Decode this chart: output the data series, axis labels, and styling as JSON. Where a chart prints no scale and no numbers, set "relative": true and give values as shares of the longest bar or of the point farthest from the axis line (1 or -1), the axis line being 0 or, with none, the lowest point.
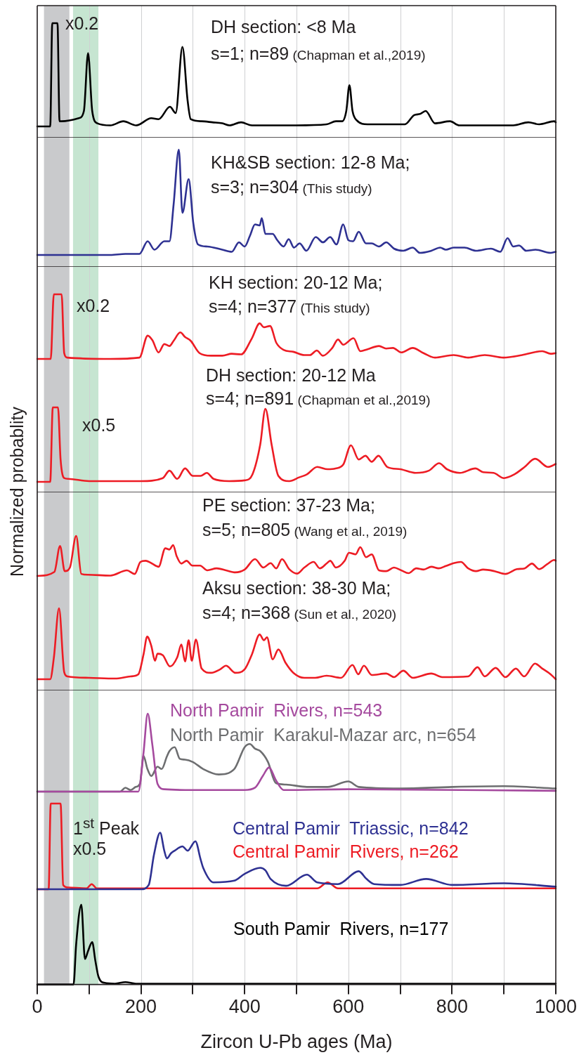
{
  "chart_data": [
    {
      "type": "line",
      "title": "DH section: <8 Ma",
      "subtitle": "s=1; n=89",
      "annotations": [
        "x0.2",
        "(Chapman et al.,2019)"
      ],
      "relative": true,
      "color": "#000000",
      "tick_labels": false,
      "grid": "x",
      "xlim": [
        0,
        1000
      ],
      "xticks": [
        0,
        {
          "value": 100,
          "label": null
        },
        200,
        {
          "value": 300,
          "label": null
        },
        400,
        {
          "value": 500,
          "label": null
        },
        600,
        {
          "value": 700,
          "label": null
        },
        800,
        {
          "value": 900,
          "label": null
        },
        1000
      ],
      "bands": [
        {
          "axis": "x",
          "from": 13,
          "to": 62,
          "color": "#c9cacc"
        },
        {
          "axis": "x",
          "from": 69,
          "to": 118,
          "color": "#c6e5d1"
        }
      ],
      "x": [
        0,
        25,
        29,
        39,
        43,
        47,
        80,
        90,
        98,
        106,
        116,
        141,
        166,
        191,
        220,
        234,
        256,
        267,
        280,
        290,
        296,
        317,
        338,
        357,
        371,
        393,
        414,
        500,
        558,
        576,
        588,
        596,
        602,
        608,
        616,
        637,
        709,
        727,
        738,
        749,
        767,
        796,
        814,
        918,
        947,
        968,
        997,
        1000
      ],
      "values": [
        0,
        0,
        1,
        1,
        0.05,
        0.05,
        0.08,
        0.15,
        0.71,
        0.15,
        0.03,
        0.01,
        0.05,
        0.01,
        0.08,
        0.07,
        0.19,
        0.13,
        0.77,
        0.25,
        0.07,
        0.05,
        0.04,
        0.03,
        0.01,
        0.04,
        0.01,
        0.01,
        0.02,
        0.05,
        0.05,
        0.15,
        0.4,
        0.15,
        0.06,
        0.02,
        0.02,
        0.11,
        0.12,
        0.15,
        0.03,
        0.05,
        0.01,
        0.01,
        0.04,
        0.02,
        0.05,
        0.04
      ]
    },
    {
      "type": "line",
      "title": "KH&SB section: 12-8 Ma;",
      "subtitle": "s=3; n=304",
      "annotations": [
        "(This study)"
      ],
      "relative": true,
      "color": "#2e3192",
      "tick_labels": false,
      "grid": "x",
      "xlim": [
        0,
        1000
      ],
      "xticks": [
        0,
        {
          "value": 100,
          "label": null
        },
        200,
        {
          "value": 300,
          "label": null
        },
        400,
        {
          "value": 500,
          "label": null
        },
        600,
        {
          "value": 700,
          "label": null
        },
        800,
        {
          "value": 900,
          "label": null
        },
        1000
      ],
      "bands": [
        {
          "axis": "x",
          "from": 13,
          "to": 62,
          "color": "#c9cacc"
        },
        {
          "axis": "x",
          "from": 69,
          "to": 118,
          "color": "#c6e5d1"
        }
      ],
      "x": [
        0,
        141,
        170,
        197,
        213,
        226,
        245,
        255,
        263,
        273,
        280,
        292,
        301,
        310,
        328,
        357,
        375,
        389,
        400,
        410,
        420,
        429,
        433,
        440,
        454,
        463,
        475,
        485,
        495,
        506,
        519,
        537,
        551,
        565,
        577,
        590,
        600,
        609,
        620,
        634,
        645,
        659,
        673,
        688,
        706,
        724,
        738,
        760,
        777,
        788,
        803,
        824,
        846,
        875,
        893,
        907,
        918,
        929,
        943,
        961,
        990,
        1000
      ],
      "values": [
        0,
        0,
        0.01,
        0.01,
        0.13,
        0.05,
        0.13,
        0.13,
        0.48,
        1,
        0.4,
        0.72,
        0.3,
        0.1,
        0.08,
        0.05,
        0.03,
        0.12,
        0.08,
        0.18,
        0.29,
        0.28,
        0.35,
        0.2,
        0.2,
        0.14,
        0.08,
        0.15,
        0.07,
        0.11,
        0.04,
        0.17,
        0.12,
        0.17,
        0.1,
        0.29,
        0.14,
        0.13,
        0.22,
        0.11,
        0.11,
        0.08,
        0.12,
        0.06,
        0.04,
        0.07,
        0.02,
        0.04,
        0.07,
        0.05,
        0.07,
        0.07,
        0.04,
        0.06,
        0.03,
        0.16,
        0.08,
        0.09,
        0.04,
        0.05,
        0.02,
        0.03
      ]
    },
    {
      "type": "line",
      "title": "KH section: 20-12 Ma;",
      "subtitle": "s=4; n=377",
      "annotations": [
        "x0.2",
        "(This study)"
      ],
      "relative": true,
      "color": "#ed1c24",
      "tick_labels": false,
      "grid": "x",
      "xlim": [
        0,
        1000
      ],
      "xticks": [
        0,
        {
          "value": 100,
          "label": null
        },
        200,
        {
          "value": 300,
          "label": null
        },
        400,
        {
          "value": 500,
          "label": null
        },
        600,
        {
          "value": 700,
          "label": null
        },
        800,
        {
          "value": 900,
          "label": null
        },
        1000
      ],
      "bands": [
        {
          "axis": "x",
          "from": 13,
          "to": 62,
          "color": "#c9cacc"
        },
        {
          "axis": "x",
          "from": 69,
          "to": 118,
          "color": "#c6e5d1"
        }
      ],
      "x": [
        0,
        26,
        32,
        47,
        52,
        58,
        141,
        197,
        213,
        222,
        234,
        245,
        255,
        263,
        276,
        285,
        296,
        313,
        335,
        357,
        375,
        393,
        414,
        429,
        437,
        449,
        461,
        475,
        494,
        515,
        526,
        539,
        551,
        569,
        580,
        590,
        610,
        623,
        637,
        659,
        673,
        686,
        702,
        724,
        745,
        767,
        803,
        831,
        863,
        899,
        935,
        974,
        990,
        1000
      ],
      "values": [
        0,
        0,
        1,
        1,
        0.09,
        0.02,
        0,
        0.02,
        0.36,
        0.29,
        0.1,
        0.23,
        0.2,
        0.28,
        0.41,
        0.34,
        0.28,
        0.09,
        0.05,
        0.05,
        0.08,
        0.07,
        0.32,
        0.55,
        0.49,
        0.51,
        0.25,
        0.14,
        0.11,
        0.06,
        0.06,
        0.13,
        0.05,
        0.17,
        0.3,
        0.22,
        0.32,
        0.12,
        0.15,
        0.2,
        0.16,
        0.17,
        0.1,
        0.17,
        0.09,
        0.02,
        0.06,
        0.02,
        0.06,
        0.02,
        0.06,
        0.12,
        0.08,
        0.09
      ]
    },
    {
      "type": "line",
      "title": "DH section: 20-12 Ma",
      "subtitle": "s=4; n=891",
      "annotations": [
        "x0.5",
        "(Chapman et al.,2019)"
      ],
      "ylabel": "Normalized probablity",
      "relative": true,
      "color": "#ed1c24",
      "tick_labels": false,
      "grid": "x",
      "xlim": [
        0,
        1000
      ],
      "xticks": [
        0,
        {
          "value": 100,
          "label": null
        },
        200,
        {
          "value": 300,
          "label": null
        },
        400,
        {
          "value": 500,
          "label": null
        },
        600,
        {
          "value": 700,
          "label": null
        },
        800,
        {
          "value": 900,
          "label": null
        },
        1000
      ],
      "bands": [
        {
          "axis": "x",
          "from": 13,
          "to": 62,
          "color": "#c9cacc"
        },
        {
          "axis": "x",
          "from": 69,
          "to": 118,
          "color": "#c6e5d1"
        }
      ],
      "x": [
        0,
        25,
        30,
        40,
        45,
        52,
        60,
        100,
        200,
        242,
        255,
        270,
        285,
        300,
        315,
        327,
        340,
        370,
        400,
        415,
        430,
        440,
        452,
        465,
        486,
        505,
        520,
        540,
        560,
        575,
        590,
        605,
        620,
        633,
        645,
        658,
        675,
        700,
        730,
        755,
        775,
        790,
        815,
        845,
        860,
        880,
        900,
        920,
        940,
        960,
        985,
        1000
      ],
      "values": [
        0,
        0,
        1,
        1,
        0.3,
        0.05,
        0.04,
        0.01,
        0.01,
        0.05,
        0.15,
        0.04,
        0.18,
        0.08,
        0.08,
        0.12,
        0.04,
        0.01,
        0.02,
        0.1,
        0.5,
        0.98,
        0.5,
        0.08,
        0.01,
        0.06,
        0.1,
        0.2,
        0.17,
        0.18,
        0.23,
        0.49,
        0.3,
        0.35,
        0.27,
        0.35,
        0.2,
        0.17,
        0.12,
        0.15,
        0.25,
        0.17,
        0.12,
        0.18,
        0.13,
        0.12,
        0.05,
        0.1,
        0.2,
        0.31,
        0.2,
        0.24
      ]
    },
    {
      "type": "line",
      "title": "PE section: 37-23 Ma;",
      "subtitle": "s=5; n=805",
      "annotations": [
        "(Wang et al., 2019)"
      ],
      "relative": true,
      "color": "#ed1c24",
      "tick_labels": false,
      "grid": "x",
      "xlim": [
        0,
        1000
      ],
      "xticks": [
        0,
        {
          "value": 100,
          "label": null
        },
        200,
        {
          "value": 300,
          "label": null
        },
        400,
        {
          "value": 500,
          "label": null
        },
        600,
        {
          "value": 700,
          "label": null
        },
        800,
        {
          "value": 900,
          "label": null
        },
        1000
      ],
      "bands": [
        {
          "axis": "x",
          "from": 13,
          "to": 62,
          "color": "#c9cacc"
        },
        {
          "axis": "x",
          "from": 69,
          "to": 118,
          "color": "#c6e5d1"
        }
      ],
      "x": [
        0,
        33,
        44,
        53,
        63,
        75,
        85,
        98,
        141,
        173,
        188,
        199,
        209,
        220,
        234,
        247,
        255,
        262,
        269,
        278,
        288,
        299,
        314,
        328,
        346,
        364,
        382,
        400,
        420,
        436,
        450,
        461,
        472,
        486,
        501,
        515,
        533,
        545,
        558,
        565,
        576,
        593,
        601,
        614,
        623,
        634,
        645,
        659,
        673,
        688,
        702,
        716,
        731,
        745,
        760,
        774,
        788,
        803,
        817,
        831,
        846,
        860,
        882,
        903,
        925,
        940,
        954,
        968,
        983,
        997,
        1000
      ],
      "values": [
        0,
        0.1,
        0.75,
        0.12,
        0.21,
        1,
        0.05,
        0.03,
        0.01,
        0.14,
        0.05,
        0.35,
        0.38,
        0.32,
        0.23,
        0.69,
        0.66,
        0.77,
        0.49,
        0.31,
        0.38,
        0.26,
        0.26,
        0.14,
        0.19,
        0.14,
        0.09,
        0.16,
        0.42,
        0.21,
        0.32,
        0.19,
        0.42,
        0.17,
        0.06,
        0.21,
        0.35,
        0.19,
        0.31,
        0.38,
        0.21,
        0.38,
        0.58,
        0.54,
        0.72,
        0.47,
        0.54,
        0.14,
        0.12,
        0.21,
        0.14,
        0.07,
        0.19,
        0.16,
        0.23,
        0.19,
        0.25,
        0.32,
        0.35,
        0.19,
        0.12,
        0.16,
        0.12,
        0.05,
        0.17,
        0.19,
        0.31,
        0.17,
        0.29,
        0.4,
        0.38
      ]
    },
    {
      "type": "line",
      "title": "Aksu section: 38-30 Ma;",
      "subtitle": "s=4; n=368",
      "annotations": [
        "(Sun et al., 2020)"
      ],
      "relative": true,
      "color": "#ed1c24",
      "tick_labels": false,
      "grid": "x",
      "xlim": [
        0,
        1000
      ],
      "xticks": [
        0,
        {
          "value": 100,
          "label": null
        },
        200,
        {
          "value": 300,
          "label": null
        },
        400,
        {
          "value": 500,
          "label": null
        },
        600,
        {
          "value": 700,
          "label": null
        },
        800,
        {
          "value": 900,
          "label": null
        },
        1000
      ],
      "bands": [
        {
          "axis": "x",
          "from": 13,
          "to": 62,
          "color": "#c9cacc"
        },
        {
          "axis": "x",
          "from": 69,
          "to": 118,
          "color": "#c6e5d1"
        }
      ],
      "x": [
        0,
        25,
        32,
        42,
        52,
        58,
        100,
        150,
        180,
        195,
        205,
        212,
        220,
        227,
        232,
        242,
        256,
        270,
        278,
        285,
        292,
        298,
        306,
        317,
        335,
        353,
        364,
        382,
        400,
        414,
        429,
        437,
        443,
        454,
        465,
        479,
        494,
        515,
        536,
        558,
        586,
        608,
        619,
        630,
        645,
        673,
        688,
        706,
        724,
        760,
        781,
        831,
        849,
        863,
        884,
        903,
        923,
        939,
        960,
        974,
        990,
        1000
      ],
      "values": [
        0,
        0,
        0.3,
        1,
        0.1,
        0.04,
        0.02,
        0.01,
        0.04,
        0.07,
        0.35,
        0.6,
        0.47,
        0.26,
        0.36,
        0.34,
        0.18,
        0.31,
        0.49,
        0.25,
        0.55,
        0.26,
        0.56,
        0.15,
        0.09,
        0.14,
        0.19,
        0.09,
        0.14,
        0.35,
        0.63,
        0.55,
        0.59,
        0.28,
        0.42,
        0.23,
        0.09,
        0.02,
        0.02,
        0.05,
        0.02,
        0.2,
        0.07,
        0.19,
        0.06,
        0.08,
        0.03,
        0.12,
        0.02,
        0.08,
        0.03,
        0.04,
        0.17,
        0.04,
        0.16,
        0.03,
        0.15,
        0.04,
        0.22,
        0.15,
        0.07,
        0
      ]
    },
    {
      "type": "line",
      "relative": true,
      "tick_labels": false,
      "grid": "x",
      "xlim": [
        0,
        1000
      ],
      "xticks": [
        0,
        {
          "value": 100,
          "label": null
        },
        200,
        {
          "value": 300,
          "label": null
        },
        400,
        {
          "value": 500,
          "label": null
        },
        600,
        {
          "value": 700,
          "label": null
        },
        800,
        {
          "value": 900,
          "label": null
        },
        1000
      ],
      "bands": [
        {
          "axis": "x",
          "from": 13,
          "to": 62,
          "color": "#c9cacc"
        },
        {
          "axis": "x",
          "from": 69,
          "to": 118,
          "color": "#c6e5d1"
        }
      ],
      "series": [
        {
          "name": "North Pamir  Rivers, n=543",
          "color": "#a54a9e",
          "x": [
            0,
            195,
            205,
            213,
            222,
            232,
            245,
            300,
            400,
            420,
            435,
            447,
            460,
            475,
            600,
            1000
          ],
          "values": [
            0,
            0,
            0.5,
            1,
            0.6,
            0.1,
            0.03,
            0.02,
            0.02,
            0.05,
            0.2,
            0.31,
            0.15,
            0.02,
            0.03,
            0.01
          ]
        },
        {
          "name": "North Pamir  Karakul-Mazar arc, n=654",
          "color": "#6d6e70",
          "x": [
            0,
            160,
            170,
            180,
            190,
            198,
            205,
            212,
            220,
            232,
            240,
            250,
            255,
            265,
            275,
            285,
            300,
            320,
            350,
            380,
            400,
            410,
            420,
            430,
            445,
            460,
            480,
            520,
            560,
            600,
            620,
            700,
            800,
            900,
            1000
          ],
          "values": [
            0,
            0,
            0.05,
            0.02,
            0.06,
            0.1,
            0.46,
            0.3,
            0.2,
            0.32,
            0.29,
            0.45,
            0.52,
            0.57,
            0.42,
            0.41,
            0.38,
            0.29,
            0.22,
            0.29,
            0.57,
            0.61,
            0.55,
            0.52,
            0.38,
            0.11,
            0.09,
            0.06,
            0.06,
            0.13,
            0.06,
            0.04,
            0.06,
            0.07,
            0.04
          ]
        }
      ]
    },
    {
      "type": "line",
      "annotations": [
        "1$^{st}$ Peak",
        "x0.5"
      ],
      "relative": true,
      "tick_labels": false,
      "grid": "x",
      "xlim": [
        0,
        1000
      ],
      "xticks": [
        0,
        {
          "value": 100,
          "label": null
        },
        200,
        {
          "value": 300,
          "label": null
        },
        400,
        {
          "value": 500,
          "label": null
        },
        600,
        {
          "value": 700,
          "label": null
        },
        800,
        {
          "value": 900,
          "label": null
        },
        1000
      ],
      "bands": [
        {
          "axis": "x",
          "from": 13,
          "to": 62,
          "color": "#c9cacc"
        },
        {
          "axis": "x",
          "from": 69,
          "to": 118,
          "color": "#c6e5d1"
        }
      ],
      "series": [
        {
          "name": "Central Pamir  Triassic, n=842",
          "color": "#2e3192",
          "x": [
            0,
            200,
            215,
            225,
            237,
            245,
            250,
            258,
            265,
            280,
            290,
            305,
            315,
            320,
            340,
            380,
            400,
            430,
            440,
            450,
            480,
            520,
            540,
            580,
            620,
            635,
            650,
            700,
            750,
            800,
            900,
            1000
          ],
          "values": [
            0,
            0,
            0.05,
            0.4,
            0.66,
            0.45,
            0.36,
            0.42,
            0.45,
            0.5,
            0.45,
            0.56,
            0.35,
            0.25,
            0.08,
            0.1,
            0.18,
            0.25,
            0.22,
            0.12,
            0.04,
            0.17,
            0.08,
            0.06,
            0.21,
            0.12,
            0.06,
            0.05,
            0.12,
            0.05,
            0.07,
            0.03
          ]
        },
        {
          "name": "Central Pamir  Rivers, n=262",
          "color": "#ed1c24",
          "x": [
            0,
            22,
            26,
            45,
            50,
            60,
            95,
            105,
            115,
            200,
            540,
            560,
            580,
            1000
          ],
          "values": [
            0,
            0,
            1,
            1,
            0.05,
            0.02,
            0.01,
            0.06,
            0.01,
            0.01,
            0.01,
            0.08,
            0.01,
            0.01
          ]
        }
      ]
    },
    {
      "type": "line",
      "xlabel": "Zircon U-Pb ages (Ma)",
      "relative": true,
      "tick_labels": "x",
      "grid": "x",
      "xlim": [
        0,
        1000
      ],
      "xticks": [
        0,
        {
          "value": 100,
          "label": null
        },
        200,
        {
          "value": 300,
          "label": null
        },
        400,
        {
          "value": 500,
          "label": null
        },
        600,
        {
          "value": 700,
          "label": null
        },
        800,
        {
          "value": 900,
          "label": null
        },
        1000
      ],
      "bands": [
        {
          "axis": "x",
          "from": 13,
          "to": 62,
          "color": "#c9cacc"
        },
        {
          "axis": "x",
          "from": 69,
          "to": 118,
          "color": "#c6e5d1"
        }
      ],
      "series": [
        {
          "name": "South Pamir  Rivers, n=177",
          "color": "#000000",
          "x": [
            0,
            70,
            75,
            85,
            92,
            98,
            106,
            112,
            118,
            130,
            150,
            170,
            190,
            300,
            1000
          ],
          "values": [
            0,
            0,
            0.5,
            1,
            0.32,
            0.42,
            0.53,
            0.3,
            0.1,
            0.02,
            0.01,
            0.03,
            0.01,
            0.01,
            0.01
          ]
        }
      ]
    }
  ]
}
